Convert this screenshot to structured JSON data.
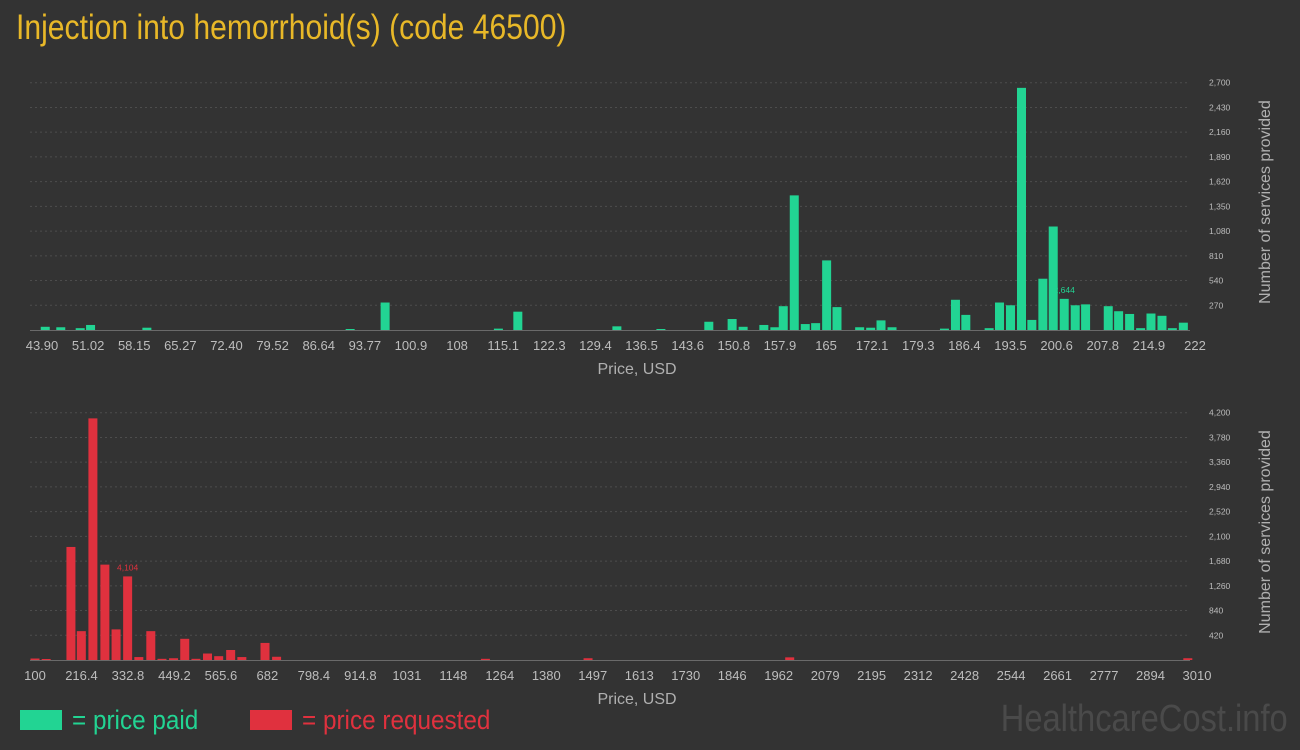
{
  "title": "Injection into hemorrhoid(s) (code 46500)",
  "brand": "HealthcareCost.info",
  "colors": {
    "paid": "#22d493",
    "requested": "#e0313e",
    "title": "#e8b828",
    "background": "#333333"
  },
  "legend": {
    "paid": "= price paid",
    "requested": "= price requested"
  },
  "chart_data": [
    {
      "type": "bar",
      "series": [
        {
          "name": "price paid",
          "color": "#22d493"
        }
      ],
      "xlabel": "Price, USD",
      "ylabel": "Number of services provided",
      "x_ticks": [
        "43.90",
        "51.02",
        "58.15",
        "65.27",
        "72.40",
        "79.52",
        "86.64",
        "93.77",
        "100.9",
        "108",
        "115.1",
        "122.3",
        "129.4",
        "136.5",
        "143.6",
        "150.8",
        "157.9",
        "165",
        "172.1",
        "179.3",
        "186.4",
        "193.5",
        "200.6",
        "207.8",
        "214.9",
        "222"
      ],
      "y_ticks": [
        "270",
        "540",
        "810",
        "1,080",
        "1,350",
        "1,620",
        "1,890",
        "2,160",
        "2,430",
        "2,700"
      ],
      "ylim": [
        0,
        2970
      ],
      "xlim": [
        43.9,
        222
      ],
      "peak_label": "2,644",
      "bars": [
        {
          "x": 44.4,
          "y": 35
        },
        {
          "x": 46.8,
          "y": 30
        },
        {
          "x": 49.8,
          "y": 20
        },
        {
          "x": 51.4,
          "y": 55
        },
        {
          "x": 60.1,
          "y": 25
        },
        {
          "x": 91.5,
          "y": 10
        },
        {
          "x": 96.9,
          "y": 300
        },
        {
          "x": 114.4,
          "y": 15
        },
        {
          "x": 117.4,
          "y": 200
        },
        {
          "x": 132.7,
          "y": 40
        },
        {
          "x": 139.5,
          "y": 10
        },
        {
          "x": 146.9,
          "y": 90
        },
        {
          "x": 150.5,
          "y": 120
        },
        {
          "x": 152.2,
          "y": 35
        },
        {
          "x": 155.4,
          "y": 55
        },
        {
          "x": 157.1,
          "y": 30
        },
        {
          "x": 158.4,
          "y": 260
        },
        {
          "x": 160.1,
          "y": 1470
        },
        {
          "x": 161.8,
          "y": 65
        },
        {
          "x": 163.4,
          "y": 75
        },
        {
          "x": 165.1,
          "y": 760
        },
        {
          "x": 166.7,
          "y": 250
        },
        {
          "x": 170.2,
          "y": 30
        },
        {
          "x": 171.9,
          "y": 25
        },
        {
          "x": 173.5,
          "y": 105
        },
        {
          "x": 175.2,
          "y": 30
        },
        {
          "x": 183.3,
          "y": 15
        },
        {
          "x": 185,
          "y": 330
        },
        {
          "x": 186.6,
          "y": 165
        },
        {
          "x": 190.2,
          "y": 20
        },
        {
          "x": 191.8,
          "y": 300
        },
        {
          "x": 193.5,
          "y": 270
        },
        {
          "x": 195.2,
          "y": 2644
        },
        {
          "x": 196.8,
          "y": 110
        },
        {
          "x": 198.5,
          "y": 560
        },
        {
          "x": 200.1,
          "y": 1130
        },
        {
          "x": 201.8,
          "y": 340
        },
        {
          "x": 203.5,
          "y": 270
        },
        {
          "x": 205.1,
          "y": 280
        },
        {
          "x": 208.6,
          "y": 260
        },
        {
          "x": 210.2,
          "y": 205
        },
        {
          "x": 211.9,
          "y": 175
        },
        {
          "x": 213.6,
          "y": 20
        },
        {
          "x": 215.2,
          "y": 180
        },
        {
          "x": 216.9,
          "y": 155
        },
        {
          "x": 218.5,
          "y": 20
        },
        {
          "x": 220.2,
          "y": 80
        }
      ]
    },
    {
      "type": "bar",
      "series": [
        {
          "name": "price requested",
          "color": "#e0313e"
        }
      ],
      "xlabel": "Price, USD",
      "ylabel": "Number of services provided",
      "x_ticks": [
        "100",
        "216.4",
        "332.8",
        "449.2",
        "565.6",
        "682",
        "798.4",
        "914.8",
        "1031",
        "1148",
        "1264",
        "1380",
        "1497",
        "1613",
        "1730",
        "1846",
        "1962",
        "2079",
        "2195",
        "2312",
        "2428",
        "2544",
        "2661",
        "2777",
        "2894",
        "3010"
      ],
      "y_ticks": [
        "420",
        "840",
        "1,260",
        "1,680",
        "2,100",
        "2,520",
        "2,940",
        "3,360",
        "3,780",
        "4,200"
      ],
      "ylim": [
        0,
        4620
      ],
      "xlim": [
        100,
        3010
      ],
      "peak_label": "4,104",
      "bars": [
        {
          "x": 100,
          "y": 25
        },
        {
          "x": 128,
          "y": 15
        },
        {
          "x": 190,
          "y": 1920
        },
        {
          "x": 216,
          "y": 490
        },
        {
          "x": 245,
          "y": 4104
        },
        {
          "x": 275,
          "y": 1620
        },
        {
          "x": 303,
          "y": 520
        },
        {
          "x": 332,
          "y": 1420
        },
        {
          "x": 360,
          "y": 50
        },
        {
          "x": 390,
          "y": 490
        },
        {
          "x": 418,
          "y": 20
        },
        {
          "x": 447,
          "y": 30
        },
        {
          "x": 475,
          "y": 360
        },
        {
          "x": 503,
          "y": 20
        },
        {
          "x": 532,
          "y": 110
        },
        {
          "x": 560,
          "y": 65
        },
        {
          "x": 590,
          "y": 170
        },
        {
          "x": 618,
          "y": 50
        },
        {
          "x": 676,
          "y": 290
        },
        {
          "x": 705,
          "y": 55
        },
        {
          "x": 1228,
          "y": 20
        },
        {
          "x": 1485,
          "y": 30
        },
        {
          "x": 1990,
          "y": 45
        },
        {
          "x": 2987,
          "y": 30
        }
      ]
    }
  ]
}
